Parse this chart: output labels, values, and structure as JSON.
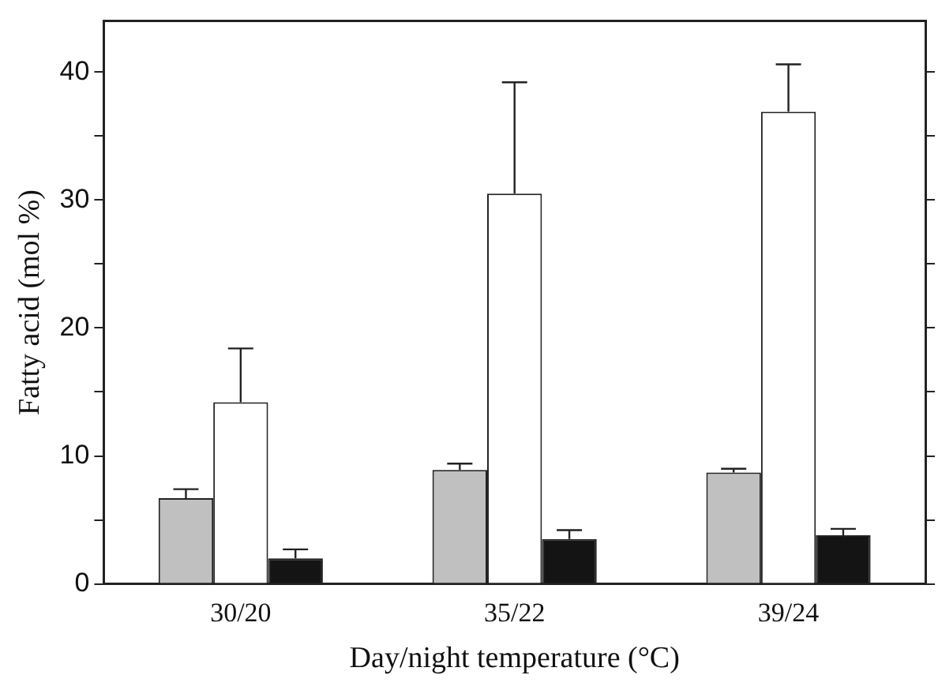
{
  "chart_data": {
    "type": "bar",
    "xlabel": "Day/night temperature (°C)",
    "ylabel": "Fatty acid (mol %)",
    "categories": [
      "30/20",
      "35/22",
      "39/24"
    ],
    "series": [
      {
        "color": "#c0c0c0",
        "values": [
          6.7,
          8.9,
          8.7
        ],
        "errors": [
          [
            6.7,
            7.4
          ],
          [
            8.9,
            9.4
          ],
          [
            8.7,
            9.0
          ]
        ]
      },
      {
        "color": "#ffffff",
        "values": [
          14.2,
          30.5,
          36.9
        ],
        "errors": [
          [
            14.2,
            18.4
          ],
          [
            30.5,
            39.2
          ],
          [
            36.9,
            40.6
          ]
        ]
      },
      {
        "color": "#141414",
        "values": [
          2.0,
          3.5,
          3.8
        ],
        "errors": [
          [
            2.0,
            2.7
          ],
          [
            3.5,
            4.2
          ],
          [
            3.8,
            4.3
          ]
        ]
      }
    ],
    "ylim": [
      0,
      44
    ],
    "yticks": [
      0,
      {
        "value": 5,
        "label": null
      },
      10,
      {
        "value": 15,
        "label": null
      },
      20,
      {
        "value": 25,
        "label": null
      },
      30,
      {
        "value": 35,
        "label": null
      },
      40
    ],
    "grid": false,
    "legend": false
  }
}
